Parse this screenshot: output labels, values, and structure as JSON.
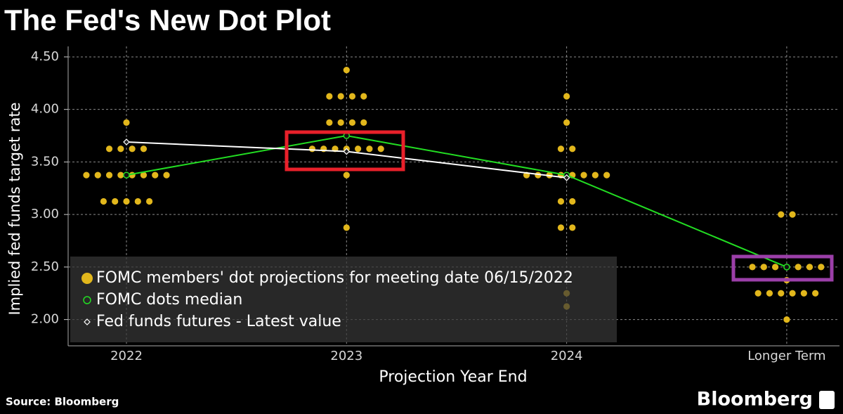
{
  "chart_data": {
    "type": "dot",
    "title": "The Fed's New Dot Plot",
    "ylabel": "Implied fed funds target rate",
    "xlabel": "Projection Year End",
    "source": "Source: Bloomberg",
    "brand": "Bloomberg",
    "categories": [
      "2022",
      "2023",
      "2024",
      "Longer Term"
    ],
    "ylim": [
      1.75,
      4.6
    ],
    "yticks": [
      {
        "value": 2,
        "label": "2.00"
      },
      {
        "value": 2.5,
        "label": "2.50"
      },
      {
        "value": 3,
        "label": "3.00"
      },
      {
        "value": 3.5,
        "label": "3.50"
      },
      {
        "value": 4,
        "label": "4.00"
      },
      {
        "value": 4.5,
        "label": "4.50"
      }
    ],
    "grid": true,
    "legend": "lower left",
    "series": [
      {
        "name": "FOMC members' dot projections for meeting date 06/15/2022",
        "color": "#e2b71c",
        "marker": "dot",
        "values": [
          [
            3.875,
            3.625,
            3.625,
            3.625,
            3.625,
            3.375,
            3.375,
            3.375,
            3.375,
            3.375,
            3.375,
            3.375,
            3.375,
            3.125,
            3.125,
            3.125,
            3.125,
            3.125
          ],
          [
            4.375,
            4.125,
            4.125,
            4.125,
            4.125,
            3.875,
            3.875,
            3.875,
            3.875,
            3.625,
            3.625,
            3.625,
            3.625,
            3.625,
            3.625,
            3.625,
            3.375,
            2.875
          ],
          [
            4.125,
            3.875,
            3.625,
            3.625,
            3.375,
            3.375,
            3.375,
            3.375,
            3.375,
            3.375,
            3.375,
            3.375,
            3.125,
            3.125,
            2.875,
            2.875,
            2.25,
            2.125
          ],
          [
            3.0,
            3.0,
            2.5,
            2.5,
            2.5,
            2.5,
            2.5,
            2.5,
            2.5,
            2.375,
            2.25,
            2.25,
            2.25,
            2.25,
            2.25,
            2.25,
            2.0
          ]
        ]
      },
      {
        "name": "FOMC dots median",
        "color": "#22dd22",
        "marker": "circle",
        "values": [
          3.375,
          3.75,
          3.375,
          2.5
        ]
      },
      {
        "name": "Fed funds futures - Latest value",
        "color": "#ffffff",
        "marker": "diamond",
        "values": [
          3.69,
          3.6,
          3.35,
          null
        ]
      }
    ]
  }
}
